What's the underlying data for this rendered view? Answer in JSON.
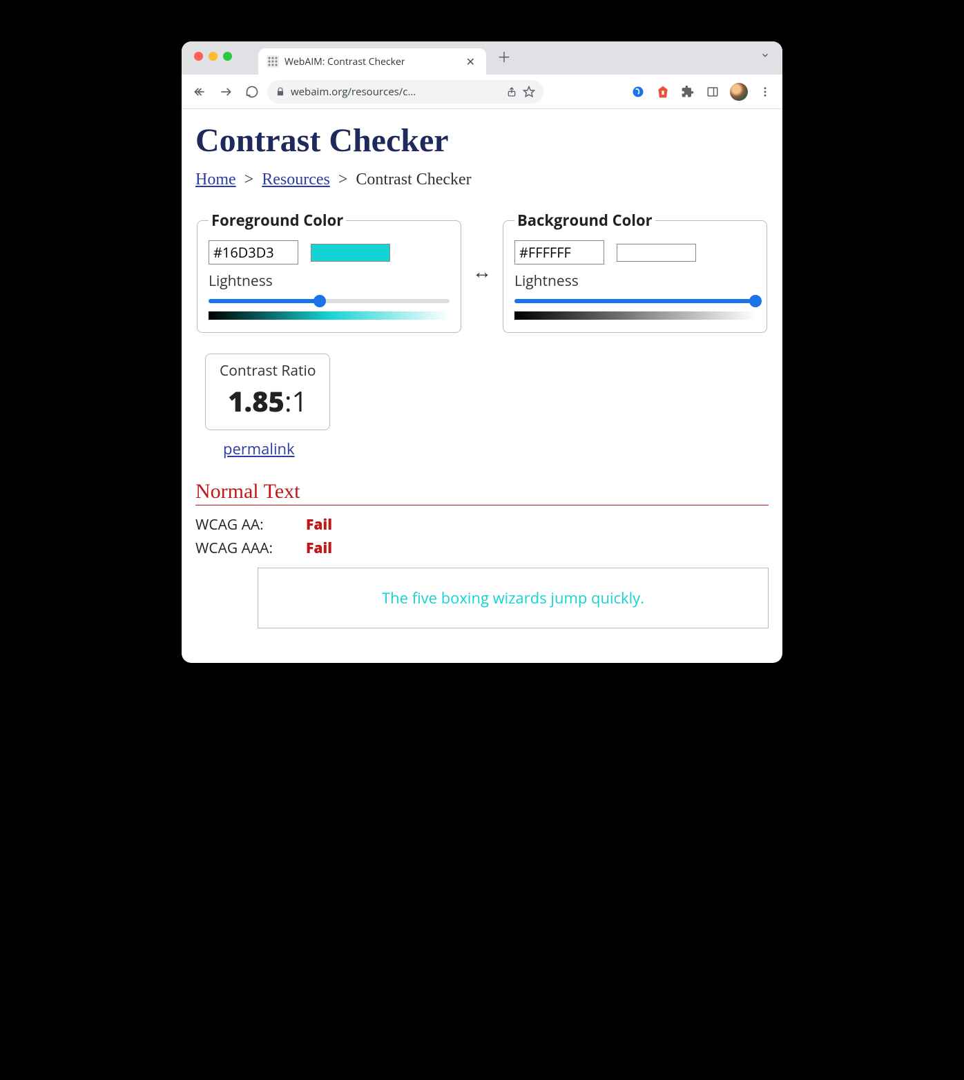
{
  "browser": {
    "tab_title": "WebAIM: Contrast Checker",
    "url_display": "webaim.org/resources/c…"
  },
  "page": {
    "title": "Contrast Checker",
    "breadcrumb": {
      "home": "Home",
      "resources": "Resources",
      "current": "Contrast Checker",
      "sep": ">"
    },
    "foreground": {
      "legend": "Foreground Color",
      "hex": "#16D3D3",
      "swatch_color": "#16D3D3",
      "lightness_label": "Lightness",
      "slider_percent": 46,
      "gradient_css": "linear-gradient(to right, #000000, #0a6868, #16d3d3, #8be9e9, #ffffff)"
    },
    "background": {
      "legend": "Background Color",
      "hex": "#FFFFFF",
      "swatch_color": "#FFFFFF",
      "lightness_label": "Lightness",
      "slider_percent": 100,
      "gradient_css": "linear-gradient(to right, #000000, #808080, #ffffff)"
    },
    "swap_glyph": "↔",
    "contrast": {
      "label": "Contrast Ratio",
      "value_bold": "1.85",
      "value_suffix": ":1",
      "permalink": "permalink"
    },
    "normal_text": {
      "heading": "Normal Text",
      "rows": [
        {
          "label": "WCAG AA:",
          "result": "Fail",
          "pass": false
        },
        {
          "label": "WCAG AAA:",
          "result": "Fail",
          "pass": false
        }
      ],
      "sample": "The five boxing wizards jump quickly.",
      "sample_fg": "#16D3D3",
      "sample_bg": "#FFFFFF"
    }
  },
  "colors": {
    "heading": "#1f2a5c",
    "link": "#2b3ca8",
    "danger": "#c01818",
    "slider": "#1a73e8"
  }
}
